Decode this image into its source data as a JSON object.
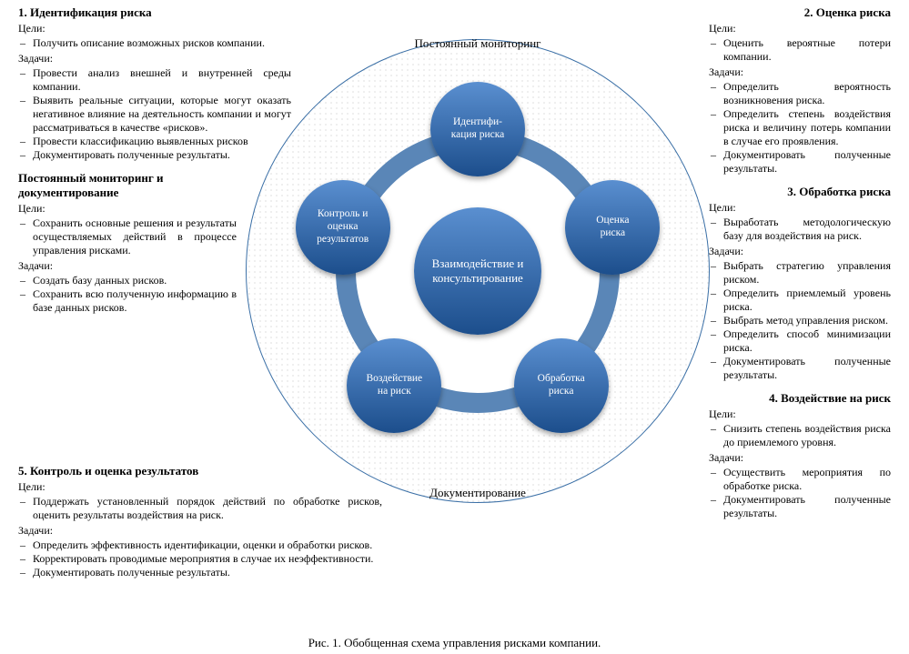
{
  "caption": "Рис. 1. Обобщенная схема управления рисками компании.",
  "goals_label": "Цели:",
  "tasks_label": "Задачи:",
  "left_blocks": [
    {
      "title": "1.   Идентификация риска",
      "goals": [
        "Получить описание возможных рисков компании."
      ],
      "tasks": [
        "Провести анализ внешней и внутренней среды компании.",
        "Выявить реальные ситуации, которые могут оказать негативное влияние на деятельность компании и могут рассматриваться в качестве «рисков».",
        "Провести классификацию выявленных рисков",
        "Документировать полученные результаты."
      ]
    },
    {
      "title": "Постоянный мониторинг и документирование",
      "goals": [
        "Сохранить основные решения и результаты осуществляемых действий в процессе управления рисками."
      ],
      "tasks": [
        "Создать базу данных рисков.",
        "Сохранить всю полученную информацию в базе данных рисков."
      ]
    }
  ],
  "block5": {
    "title": "5. Контроль и оценка результатов",
    "goals": [
      "Поддержать установленный порядок действий по обработке рисков, оценить результаты воздействия на риск."
    ],
    "tasks": [
      "Определить эффективность идентификации, оценки и обработки рисков.",
      "Корректировать проводимые мероприятия в случае их неэффективности.",
      "Документировать полученные результаты."
    ]
  },
  "right_blocks": [
    {
      "title": "2. Оценка риска",
      "goals": [
        "Оценить вероятные потери компании."
      ],
      "tasks": [
        "Определить вероятность возникновения риска.",
        "Определить степень воздействия риска и величину потерь компании в случае его проявления.",
        "Документировать полученные результаты."
      ]
    },
    {
      "title": "3. Обработка риска",
      "goals": [
        "Выработать методологическую базу для воздействия на риск."
      ],
      "tasks": [
        "Выбрать стратегию управления риском.",
        "Определить приемлемый уровень риска.",
        "Выбрать метод управления риском.",
        "Определить способ минимизации риска.",
        "Документировать полученные результаты."
      ]
    },
    {
      "title": "4. Воздействие на риск",
      "goals": [
        "Снизить степень воздействия риска до приемлемого уровня."
      ],
      "tasks": [
        "Осуществить мероприятия по обработке риска.",
        "Документировать полученные результаты."
      ]
    }
  ],
  "diagram": {
    "outer_label_top": "Постоянный мониторинг",
    "outer_label_bottom": "Документирование",
    "outer_circle": {
      "diameter": 510,
      "border_color": "#3a6fa6",
      "dot_color": "#bfbfbf"
    },
    "ring": {
      "outer_diameter": 312,
      "thickness": 22,
      "color": "#5a86b7",
      "fill_inside": "#ffffff"
    },
    "center_node": {
      "label": "Взаимодействие и консультирование",
      "diameter": 140,
      "gradient_top": "#5a8fd0",
      "gradient_bottom": "#1c4e8c"
    },
    "outer_nodes": {
      "diameter": 104,
      "gradient_top": "#5a8fd0",
      "gradient_bottom": "#1c4e8c",
      "orbit_radius": 156,
      "items": [
        {
          "label": "Идентифи-\nкация риска",
          "angle_deg": -90
        },
        {
          "label": "Оценка\nриска",
          "angle_deg": -18
        },
        {
          "label": "Обработка\nриска",
          "angle_deg": 54
        },
        {
          "label": "Воздействие\nна риск",
          "angle_deg": 126
        },
        {
          "label": "Контроль и\nоценка\nрезультатов",
          "angle_deg": 198
        }
      ]
    },
    "colors": {
      "node_text": "#ffffff",
      "body_text": "#000000"
    }
  }
}
